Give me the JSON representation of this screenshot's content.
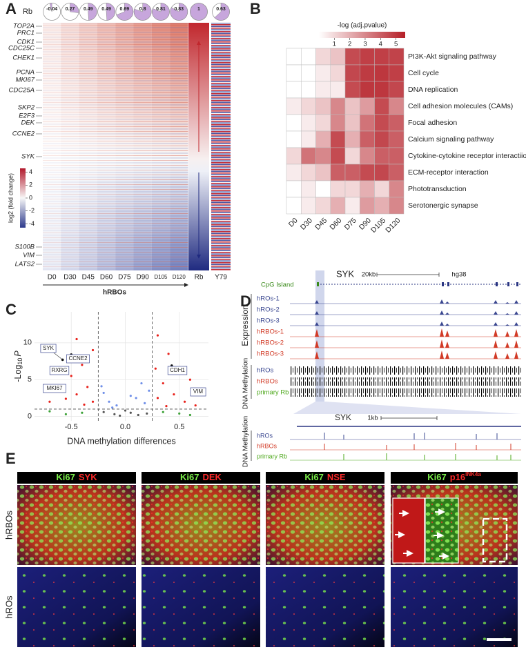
{
  "panel_labels": [
    "A",
    "B",
    "C",
    "D",
    "E"
  ],
  "panel_a": {
    "pie_row_label": "Rb",
    "pies": [
      -0.04,
      0.27,
      0.49,
      0.49,
      0.69,
      0.8,
      0.81,
      0.83,
      1,
      0.63
    ],
    "pie_color": "#c7a6dc",
    "genes": [
      "TOP2A",
      "PRC1",
      "CDK1",
      "CDC25C",
      "CHEK1",
      "PCNA",
      "MKI67",
      "CDC25A",
      "SKP2",
      "E2F3",
      "DEK",
      "CCNE2",
      "SYK",
      "S100B",
      "VIM",
      "LATS2"
    ],
    "columns": [
      "D0",
      "D30",
      "D45",
      "D60",
      "D75",
      "D90",
      "D105",
      "D120",
      "Rb",
      "Y79"
    ],
    "colorbar": {
      "title": "log2 (fold change)",
      "ticks": [
        4,
        2,
        0,
        -2,
        -4
      ],
      "lim": [
        -4.6,
        4.6
      ]
    },
    "axis_label": "hRBOs"
  },
  "panel_b": {
    "type": "heatmap",
    "colorbar_title": "-log (adj.pvalue)",
    "colorbar_ticks": [
      1,
      2,
      3,
      4,
      5
    ],
    "colorbar_lim": [
      0,
      5.6
    ],
    "colors": [
      "#ffffff",
      "#b51f27"
    ],
    "columns": [
      "D0",
      "D30",
      "D45",
      "D60",
      "D75",
      "D90",
      "D105",
      "D120"
    ],
    "rows": [
      "PI3K-Akt signaling pathway",
      "Cell cycle",
      "DNA replication",
      "Cell adhesion molecules (CAMs)",
      "Focal adhesion",
      "Calcium signaling pathway",
      "Cytokine-cytokine receptor interactiion",
      "ECM-receptor interaction",
      "Phototransduction",
      "Serotonergic synapse"
    ],
    "values": [
      [
        0,
        0,
        1,
        1.5,
        4.5,
        4.8,
        4.8,
        4.7
      ],
      [
        0,
        0,
        0.5,
        1,
        4.6,
        4.9,
        5,
        4.8
      ],
      [
        0,
        0,
        0.5,
        0.5,
        4.5,
        5,
        5,
        4.6
      ],
      [
        0.5,
        1,
        1.5,
        3,
        1.5,
        2.5,
        4.5,
        3
      ],
      [
        0,
        0.5,
        1,
        3,
        1.5,
        3.5,
        4.5,
        4
      ],
      [
        0,
        0.5,
        2,
        4.5,
        2,
        4,
        4.6,
        4
      ],
      [
        1,
        3.5,
        3,
        4.5,
        1,
        3,
        4,
        4
      ],
      [
        0.5,
        1,
        1.5,
        4,
        4,
        4.5,
        4.6,
        4
      ],
      [
        0,
        0.5,
        0,
        1,
        1,
        2,
        1,
        3
      ],
      [
        0,
        0.5,
        1,
        2,
        0.5,
        2.5,
        2,
        3
      ]
    ]
  },
  "panel_c": {
    "type": "scatter",
    "x_label": "DNA methylation differences",
    "y_label": {
      "prefix": "-Log",
      "sub": "10",
      "var": "P"
    },
    "xlim": [
      -0.84,
      0.77
    ],
    "ylim": [
      -0.6,
      14.2
    ],
    "xticks": [
      -0.5,
      {
        "value": 0,
        "label": "0.0"
      },
      0.5
    ],
    "yticks": [
      0,
      5,
      10
    ],
    "thresholds": {
      "x": [
        -0.25,
        0.25
      ],
      "y": 1
    },
    "colors": {
      "both": "#e8221c",
      "p_only": "#6f8fe8",
      "diff_only": "#3fa33a",
      "none": "#555555"
    },
    "x": [
      -0.1,
      0.05,
      0.12,
      -0.2,
      0.2,
      0,
      -0.05,
      -0.15,
      0.1,
      -0.2,
      0.18,
      -0.08,
      0.22,
      0.05,
      -0.22,
      0.15,
      -0.12,
      -0.4,
      -0.55,
      0.35,
      0.5,
      -0.7,
      0.6,
      -0.3,
      -0.35,
      -0.45,
      -0.5,
      -0.55,
      -0.65,
      -0.4,
      -0.3,
      -0.45,
      -0.6,
      -0.7,
      -0.38,
      0.3,
      0.35,
      0.45,
      0.5,
      0.55,
      0.4,
      0.3,
      0.6,
      0.65,
      0.38,
      0.28,
      0.72
    ],
    "y": [
      0.3,
      0.5,
      0.2,
      0.6,
      0.4,
      0.8,
      0.1,
      2,
      2.5,
      3.2,
      1.8,
      1.5,
      3.5,
      2.8,
      4.1,
      4.5,
      1.2,
      0.5,
      0.3,
      0.6,
      0.4,
      0.7,
      0.2,
      2,
      4,
      3,
      5.5,
      2.4,
      3.6,
      7,
      9,
      10.5,
      6,
      2,
      1.6,
      2.5,
      4.5,
      3,
      6,
      2,
      8.5,
      11,
      5,
      1.5,
      1.4,
      6.5,
      3.5
    ],
    "labeled_points": [
      {
        "label": "SYK",
        "x": -0.58,
        "y": 7.7
      },
      {
        "label": "CCNE2",
        "x": -0.5,
        "y": 8.4
      },
      {
        "label": "RXRG",
        "x": -0.6,
        "y": 6.4
      },
      {
        "label": "MKI67",
        "x": -0.66,
        "y": 4.0
      },
      {
        "label": "CDH1",
        "x": 0.43,
        "y": 6.9
      },
      {
        "label": "VIM",
        "x": 0.64,
        "y": 3.2
      }
    ]
  },
  "panel_d": {
    "gene": "SYK",
    "scale": "20kb",
    "genome": "hg38",
    "cpg": "CpG Island",
    "expression_label": "Expression",
    "methylation_label": "DNA Methylation",
    "expression_tracks": [
      "hROs-1",
      "hROs-2",
      "hROs-3",
      "hRBOs-1",
      "hRBOs-2",
      "hRBOs-3"
    ],
    "methylation_tracks": [
      "hROs",
      "hRBOs",
      "primary Rb"
    ],
    "colors": [
      "#3a4790",
      "#d23b27",
      "#4da81b"
    ],
    "zoom": {
      "gene": "SYK",
      "scale": "1kb",
      "methylation_label": "DNA Methylation",
      "tracks": [
        "hROs",
        "hRBOs",
        "primary Rb"
      ]
    }
  },
  "panel_e": {
    "columns": [
      {
        "a": "Ki67",
        "b": "SYK"
      },
      {
        "a": "Ki67",
        "b": "DEK"
      },
      {
        "a": "Ki67",
        "b": "NSE"
      },
      {
        "a": "Ki67",
        "b": "p16",
        "sup": "INK4a"
      }
    ],
    "rows": [
      "hRBOs",
      "hROs"
    ]
  }
}
